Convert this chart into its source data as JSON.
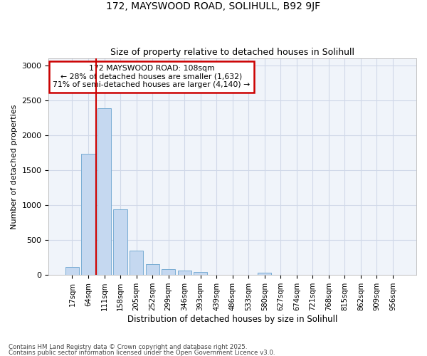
{
  "title1": "172, MAYSWOOD ROAD, SOLIHULL, B92 9JF",
  "title2": "Size of property relative to detached houses in Solihull",
  "xlabel": "Distribution of detached houses by size in Solihull",
  "ylabel": "Number of detached properties",
  "categories": [
    "17sqm",
    "64sqm",
    "111sqm",
    "158sqm",
    "205sqm",
    "252sqm",
    "299sqm",
    "346sqm",
    "393sqm",
    "439sqm",
    "486sqm",
    "533sqm",
    "580sqm",
    "627sqm",
    "674sqm",
    "721sqm",
    "768sqm",
    "815sqm",
    "862sqm",
    "909sqm",
    "956sqm"
  ],
  "values": [
    120,
    1740,
    2390,
    940,
    345,
    155,
    85,
    60,
    45,
    0,
    0,
    0,
    30,
    0,
    0,
    0,
    0,
    0,
    0,
    0,
    0
  ],
  "bar_color": "#c5d8f0",
  "bar_edgecolor": "#7aadd4",
  "redline_x": 1.5,
  "annotation_title": "172 MAYSWOOD ROAD: 108sqm",
  "annotation_line1": "← 28% of detached houses are smaller (1,632)",
  "annotation_line2": "71% of semi-detached houses are larger (4,140) →",
  "annotation_box_color": "#ffffff",
  "annotation_box_edgecolor": "#cc0000",
  "redline_color": "#cc0000",
  "ylim": [
    0,
    3100
  ],
  "yticks": [
    0,
    500,
    1000,
    1500,
    2000,
    2500,
    3000
  ],
  "footnote1": "Contains HM Land Registry data © Crown copyright and database right 2025.",
  "footnote2": "Contains public sector information licensed under the Open Government Licence v3.0.",
  "bg_color": "#ffffff",
  "plot_bg_color": "#f0f4fa",
  "grid_color": "#d0d8e8"
}
